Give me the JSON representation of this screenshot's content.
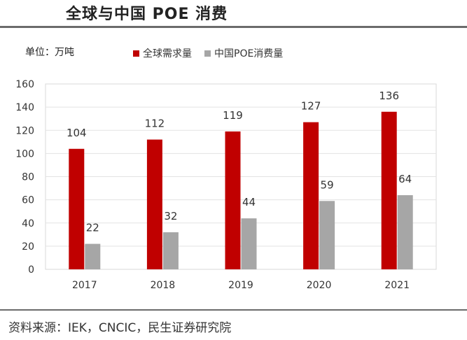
{
  "page": {
    "title": "全球与中国 POE 消费",
    "unit_label": "单位：万吨",
    "source": "资料来源：IEK，CNCIC，民生证券研究院"
  },
  "chart_data": {
    "type": "bar",
    "categories": [
      "2017",
      "2018",
      "2019",
      "2020",
      "2021"
    ],
    "series": [
      {
        "name": "全球需求量",
        "values": [
          104,
          112,
          119,
          127,
          136
        ],
        "color": "#c00000"
      },
      {
        "name": "中国POE消费量",
        "values": [
          22,
          32,
          44,
          59,
          64
        ],
        "color": "#a6a6a6"
      }
    ],
    "yticks": [
      "0",
      "20",
      "40",
      "60",
      "80",
      "100",
      "120",
      "140",
      "160"
    ],
    "ylim": [
      0,
      160
    ],
    "grid": true,
    "legend_position": "top"
  }
}
